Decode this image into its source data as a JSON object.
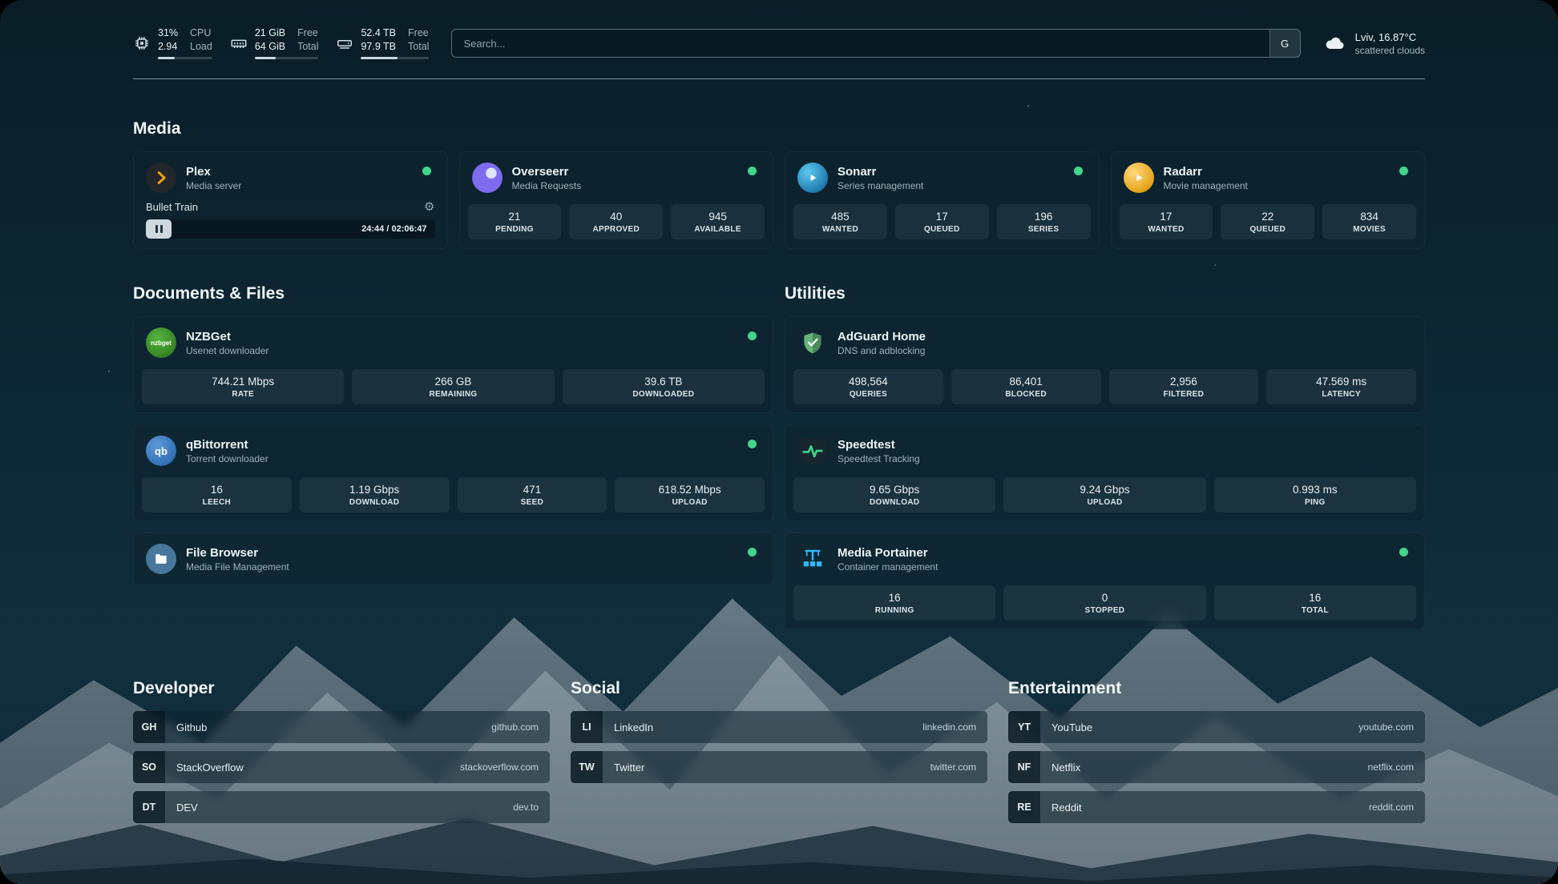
{
  "topbar": {
    "cpu": {
      "values": [
        "31%",
        "2.94"
      ],
      "labels": [
        "CPU",
        "Load"
      ],
      "meter_percent": 31
    },
    "memory": {
      "values": [
        "21 GiB",
        "64 GiB"
      ],
      "labels": [
        "Free",
        "Total"
      ],
      "meter_percent": 33
    },
    "disk": {
      "values": [
        "52.4 TB",
        "97.9 TB"
      ],
      "labels": [
        "Free",
        "Total"
      ],
      "meter_percent": 54
    },
    "search": {
      "placeholder": "Search...",
      "provider_button": "G"
    },
    "weather": {
      "location": "Lviv, 16.87°C",
      "condition": "scattered clouds"
    }
  },
  "sections": {
    "media": "Media",
    "documents": "Documents & Files",
    "utilities": "Utilities",
    "developer": "Developer",
    "social": "Social",
    "entertainment": "Entertainment"
  },
  "services": {
    "plex": {
      "name": "Plex",
      "description": "Media server",
      "now_playing": {
        "title": "Bullet Train",
        "time": "24:44 / 02:06:47"
      }
    },
    "overseerr": {
      "name": "Overseerr",
      "description": "Media Requests",
      "stats": [
        {
          "value": "21",
          "label": "PENDING"
        },
        {
          "value": "40",
          "label": "APPROVED"
        },
        {
          "value": "945",
          "label": "AVAILABLE"
        }
      ]
    },
    "sonarr": {
      "name": "Sonarr",
      "description": "Series management",
      "stats": [
        {
          "value": "485",
          "label": "WANTED"
        },
        {
          "value": "17",
          "label": "QUEUED"
        },
        {
          "value": "196",
          "label": "SERIES"
        }
      ]
    },
    "radarr": {
      "name": "Radarr",
      "description": "Movie management",
      "stats": [
        {
          "value": "17",
          "label": "WANTED"
        },
        {
          "value": "22",
          "label": "QUEUED"
        },
        {
          "value": "834",
          "label": "MOVIES"
        }
      ]
    },
    "nzbget": {
      "name": "NZBGet",
      "description": "Usenet downloader",
      "logo_text": "nzbget",
      "stats": [
        {
          "value": "744.21 Mbps",
          "label": "RATE"
        },
        {
          "value": "266 GB",
          "label": "REMAINING"
        },
        {
          "value": "39.6 TB",
          "label": "DOWNLOADED"
        }
      ]
    },
    "qbittorrent": {
      "name": "qBittorrent",
      "description": "Torrent downloader",
      "logo_text": "qb",
      "stats": [
        {
          "value": "16",
          "label": "LEECH"
        },
        {
          "value": "1.19 Gbps",
          "label": "DOWNLOAD"
        },
        {
          "value": "471",
          "label": "SEED"
        },
        {
          "value": "618.52 Mbps",
          "label": "UPLOAD"
        }
      ]
    },
    "filebrowser": {
      "name": "File Browser",
      "description": "Media File Management"
    },
    "adguard": {
      "name": "AdGuard Home",
      "description": "DNS and adblocking",
      "stats": [
        {
          "value": "498,564",
          "label": "QUERIES"
        },
        {
          "value": "86,401",
          "label": "BLOCKED"
        },
        {
          "value": "2,956",
          "label": "FILTERED"
        },
        {
          "value": "47.569 ms",
          "label": "LATENCY"
        }
      ]
    },
    "speedtest": {
      "name": "Speedtest",
      "description": "Speedtest Tracking",
      "stats": [
        {
          "value": "9.65 Gbps",
          "label": "DOWNLOAD"
        },
        {
          "value": "9.24 Gbps",
          "label": "UPLOAD"
        },
        {
          "value": "0.993 ms",
          "label": "PING"
        }
      ]
    },
    "portainer": {
      "name": "Media Portainer",
      "description": "Container management",
      "stats": [
        {
          "value": "16",
          "label": "RUNNING"
        },
        {
          "value": "0",
          "label": "STOPPED"
        },
        {
          "value": "16",
          "label": "TOTAL"
        }
      ]
    }
  },
  "bookmarks": {
    "developer": [
      {
        "abbr": "GH",
        "name": "Github",
        "url": "github.com"
      },
      {
        "abbr": "SO",
        "name": "StackOverflow",
        "url": "stackoverflow.com"
      },
      {
        "abbr": "DT",
        "name": "DEV",
        "url": "dev.to"
      }
    ],
    "social": [
      {
        "abbr": "LI",
        "name": "LinkedIn",
        "url": "linkedin.com"
      },
      {
        "abbr": "TW",
        "name": "Twitter",
        "url": "twitter.com"
      }
    ],
    "entertainment": [
      {
        "abbr": "YT",
        "name": "YouTube",
        "url": "youtube.com"
      },
      {
        "abbr": "NF",
        "name": "Netflix",
        "url": "netflix.com"
      },
      {
        "abbr": "RE",
        "name": "Reddit",
        "url": "reddit.com"
      }
    ]
  },
  "icons": {
    "gear": "⚙"
  },
  "colors": {
    "status_online": "#43d58b",
    "plex_accent": "#e5a00d",
    "speedtest_pulse": "#39d98a",
    "portainer_blue": "#2fb9f2",
    "adguard_green": "#67b279"
  }
}
